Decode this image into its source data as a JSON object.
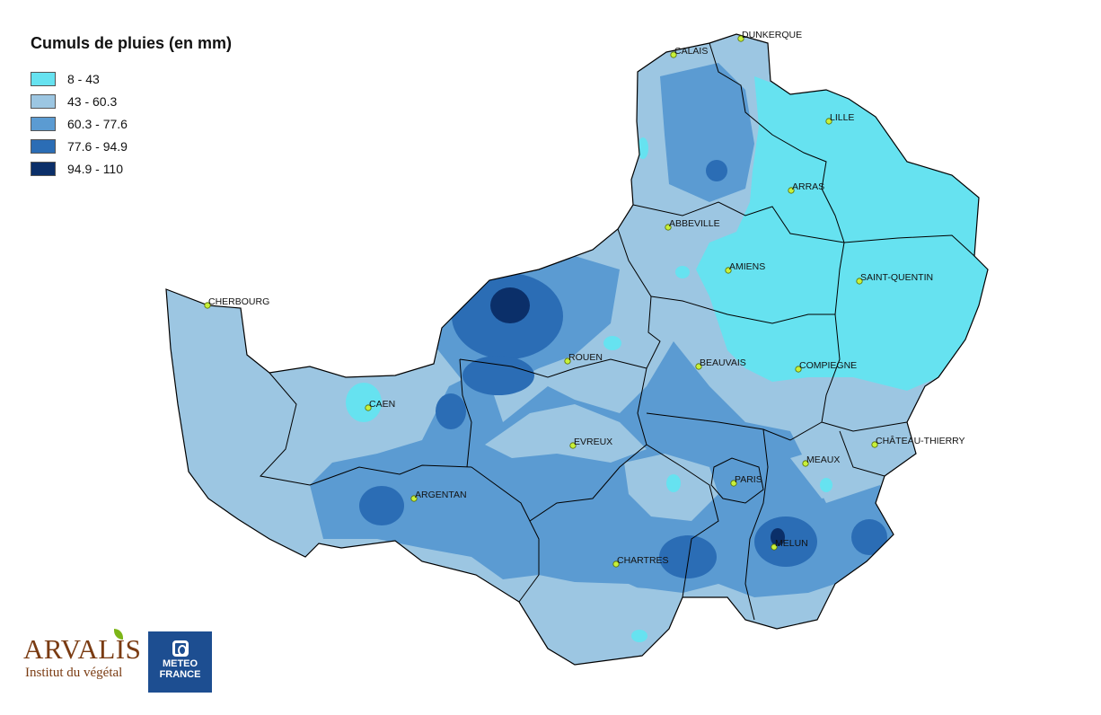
{
  "legend": {
    "title": "Cumuls de pluies (en mm)",
    "classes": [
      {
        "label": "8 - 43",
        "color": "#66e2f0"
      },
      {
        "label": "43 - 60.3",
        "color": "#9cc6e2"
      },
      {
        "label": "60.3 - 77.6",
        "color": "#5b9bd2"
      },
      {
        "label": "77.6 - 94.9",
        "color": "#2b6db5"
      },
      {
        "label": "94.9 - 110",
        "color": "#0b2f69"
      }
    ]
  },
  "cities": {
    "dunkerque": "DUNKERQUE",
    "calais": "CALAIS",
    "lille": "LILLE",
    "arras": "ARRAS",
    "abbeville": "ABBEVILLE",
    "amiens": "AMIENS",
    "saint_quentin": "SAINT-QUENTIN",
    "cherbourg": "CHERBOURG",
    "rouen": "ROUEN",
    "beauvais": "BEAUVAIS",
    "compiegne": "COMPIEGNE",
    "caen": "CAEN",
    "evreux": "EVREUX",
    "chateau_thierry": "CHÂTEAU-THIERRY",
    "meaux": "MEAUX",
    "paris": "PARIS",
    "argentan": "ARGENTAN",
    "melun": "MELUN",
    "chartres": "CHARTRES"
  },
  "logos": {
    "arvalis_name": "ARVALIS",
    "arvalis_sub": "Institut du végétal",
    "meteo_line1": "METEO",
    "meteo_line2": "FRANCE"
  },
  "colors": {
    "marker": "#c8f03a",
    "border": "#000000"
  }
}
